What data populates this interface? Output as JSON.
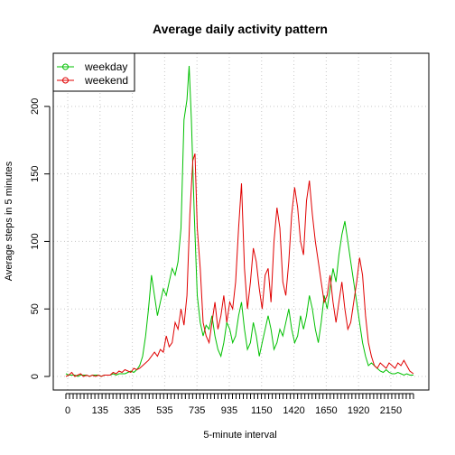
{
  "chart_data": {
    "type": "line",
    "title": "Average daily activity pattern",
    "xlabel": "5-minute interval",
    "ylabel": "Average steps in 5 minutes",
    "xlim": [
      0,
      2355
    ],
    "ylim": [
      0,
      230
    ],
    "x_ticks": [
      "0",
      "135",
      "335",
      "535",
      "735",
      "935",
      "1150",
      "1420",
      "1650",
      "1920",
      "2150"
    ],
    "y_ticks": [
      0,
      50,
      100,
      150,
      200
    ],
    "grid": true,
    "legend_position": "top-left",
    "series": [
      {
        "name": "weekday",
        "color": "#00c000",
        "points": [
          [
            0,
            2
          ],
          [
            20,
            1
          ],
          [
            40,
            1
          ],
          [
            60,
            1
          ],
          [
            80,
            0
          ],
          [
            100,
            1
          ],
          [
            120,
            1
          ],
          [
            140,
            1
          ],
          [
            160,
            0
          ],
          [
            180,
            1
          ],
          [
            200,
            1
          ],
          [
            220,
            1
          ],
          [
            240,
            0
          ],
          [
            260,
            1
          ],
          [
            280,
            1
          ],
          [
            300,
            1
          ],
          [
            320,
            2
          ],
          [
            340,
            1
          ],
          [
            360,
            2
          ],
          [
            380,
            2
          ],
          [
            400,
            2
          ],
          [
            420,
            3
          ],
          [
            440,
            4
          ],
          [
            460,
            3
          ],
          [
            480,
            5
          ],
          [
            500,
            8
          ],
          [
            520,
            15
          ],
          [
            540,
            30
          ],
          [
            560,
            50
          ],
          [
            580,
            75
          ],
          [
            600,
            60
          ],
          [
            620,
            45
          ],
          [
            640,
            55
          ],
          [
            660,
            65
          ],
          [
            680,
            60
          ],
          [
            700,
            70
          ],
          [
            720,
            80
          ],
          [
            740,
            75
          ],
          [
            760,
            85
          ],
          [
            780,
            110
          ],
          [
            800,
            190
          ],
          [
            820,
            205
          ],
          [
            835,
            230
          ],
          [
            850,
            190
          ],
          [
            870,
            120
          ],
          [
            890,
            60
          ],
          [
            910,
            40
          ],
          [
            930,
            30
          ],
          [
            950,
            38
          ],
          [
            970,
            35
          ],
          [
            990,
            45
          ],
          [
            1010,
            30
          ],
          [
            1030,
            20
          ],
          [
            1050,
            15
          ],
          [
            1070,
            25
          ],
          [
            1090,
            40
          ],
          [
            1110,
            35
          ],
          [
            1130,
            25
          ],
          [
            1150,
            30
          ],
          [
            1170,
            45
          ],
          [
            1190,
            55
          ],
          [
            1210,
            35
          ],
          [
            1230,
            20
          ],
          [
            1250,
            25
          ],
          [
            1270,
            40
          ],
          [
            1290,
            30
          ],
          [
            1310,
            15
          ],
          [
            1330,
            25
          ],
          [
            1350,
            35
          ],
          [
            1370,
            45
          ],
          [
            1390,
            35
          ],
          [
            1410,
            20
          ],
          [
            1430,
            25
          ],
          [
            1450,
            35
          ],
          [
            1470,
            30
          ],
          [
            1490,
            40
          ],
          [
            1510,
            50
          ],
          [
            1530,
            35
          ],
          [
            1550,
            25
          ],
          [
            1570,
            30
          ],
          [
            1590,
            45
          ],
          [
            1610,
            35
          ],
          [
            1630,
            45
          ],
          [
            1650,
            60
          ],
          [
            1670,
            50
          ],
          [
            1690,
            35
          ],
          [
            1710,
            25
          ],
          [
            1730,
            40
          ],
          [
            1750,
            60
          ],
          [
            1770,
            50
          ],
          [
            1790,
            65
          ],
          [
            1810,
            80
          ],
          [
            1830,
            70
          ],
          [
            1850,
            90
          ],
          [
            1870,
            105
          ],
          [
            1890,
            115
          ],
          [
            1910,
            100
          ],
          [
            1930,
            85
          ],
          [
            1950,
            70
          ],
          [
            1970,
            55
          ],
          [
            1990,
            40
          ],
          [
            2010,
            25
          ],
          [
            2030,
            15
          ],
          [
            2050,
            8
          ],
          [
            2070,
            10
          ],
          [
            2090,
            8
          ],
          [
            2110,
            6
          ],
          [
            2130,
            4
          ],
          [
            2150,
            3
          ],
          [
            2170,
            5
          ],
          [
            2190,
            3
          ],
          [
            2210,
            2
          ],
          [
            2230,
            2
          ],
          [
            2250,
            3
          ],
          [
            2270,
            2
          ],
          [
            2290,
            1
          ],
          [
            2310,
            2
          ],
          [
            2330,
            1
          ],
          [
            2355,
            1
          ]
        ]
      },
      {
        "name": "weekend",
        "color": "#e00000",
        "points": [
          [
            0,
            0
          ],
          [
            20,
            1
          ],
          [
            40,
            3
          ],
          [
            60,
            0
          ],
          [
            80,
            1
          ],
          [
            100,
            2
          ],
          [
            120,
            0
          ],
          [
            140,
            1
          ],
          [
            160,
            0
          ],
          [
            180,
            1
          ],
          [
            200,
            0
          ],
          [
            220,
            1
          ],
          [
            240,
            0
          ],
          [
            260,
            1
          ],
          [
            280,
            1
          ],
          [
            300,
            1
          ],
          [
            320,
            3
          ],
          [
            340,
            2
          ],
          [
            360,
            4
          ],
          [
            380,
            3
          ],
          [
            400,
            5
          ],
          [
            420,
            4
          ],
          [
            440,
            3
          ],
          [
            460,
            6
          ],
          [
            480,
            5
          ],
          [
            500,
            6
          ],
          [
            520,
            8
          ],
          [
            540,
            10
          ],
          [
            560,
            12
          ],
          [
            580,
            15
          ],
          [
            600,
            18
          ],
          [
            620,
            15
          ],
          [
            640,
            20
          ],
          [
            660,
            18
          ],
          [
            680,
            30
          ],
          [
            700,
            22
          ],
          [
            720,
            25
          ],
          [
            740,
            40
          ],
          [
            760,
            35
          ],
          [
            780,
            50
          ],
          [
            800,
            38
          ],
          [
            820,
            60
          ],
          [
            840,
            120
          ],
          [
            860,
            160
          ],
          [
            875,
            165
          ],
          [
            890,
            110
          ],
          [
            910,
            80
          ],
          [
            930,
            40
          ],
          [
            950,
            30
          ],
          [
            970,
            25
          ],
          [
            990,
            40
          ],
          [
            1010,
            55
          ],
          [
            1030,
            35
          ],
          [
            1050,
            45
          ],
          [
            1070,
            60
          ],
          [
            1090,
            40
          ],
          [
            1110,
            55
          ],
          [
            1130,
            50
          ],
          [
            1150,
            70
          ],
          [
            1170,
            110
          ],
          [
            1190,
            143
          ],
          [
            1210,
            80
          ],
          [
            1230,
            50
          ],
          [
            1250,
            70
          ],
          [
            1270,
            95
          ],
          [
            1290,
            85
          ],
          [
            1310,
            65
          ],
          [
            1330,
            50
          ],
          [
            1350,
            75
          ],
          [
            1370,
            80
          ],
          [
            1390,
            55
          ],
          [
            1410,
            100
          ],
          [
            1430,
            125
          ],
          [
            1450,
            110
          ],
          [
            1470,
            70
          ],
          [
            1490,
            60
          ],
          [
            1510,
            85
          ],
          [
            1530,
            120
          ],
          [
            1550,
            140
          ],
          [
            1570,
            125
          ],
          [
            1590,
            100
          ],
          [
            1610,
            90
          ],
          [
            1630,
            130
          ],
          [
            1650,
            145
          ],
          [
            1670,
            120
          ],
          [
            1690,
            100
          ],
          [
            1710,
            85
          ],
          [
            1730,
            70
          ],
          [
            1750,
            55
          ],
          [
            1770,
            60
          ],
          [
            1790,
            75
          ],
          [
            1810,
            55
          ],
          [
            1830,
            40
          ],
          [
            1850,
            55
          ],
          [
            1870,
            70
          ],
          [
            1890,
            50
          ],
          [
            1910,
            35
          ],
          [
            1930,
            40
          ],
          [
            1950,
            55
          ],
          [
            1970,
            70
          ],
          [
            1990,
            88
          ],
          [
            2010,
            75
          ],
          [
            2030,
            45
          ],
          [
            2050,
            25
          ],
          [
            2070,
            15
          ],
          [
            2090,
            8
          ],
          [
            2110,
            6
          ],
          [
            2130,
            10
          ],
          [
            2150,
            8
          ],
          [
            2170,
            6
          ],
          [
            2190,
            10
          ],
          [
            2210,
            8
          ],
          [
            2230,
            6
          ],
          [
            2250,
            10
          ],
          [
            2270,
            8
          ],
          [
            2290,
            12
          ],
          [
            2310,
            8
          ],
          [
            2330,
            4
          ],
          [
            2355,
            2
          ]
        ]
      }
    ]
  }
}
